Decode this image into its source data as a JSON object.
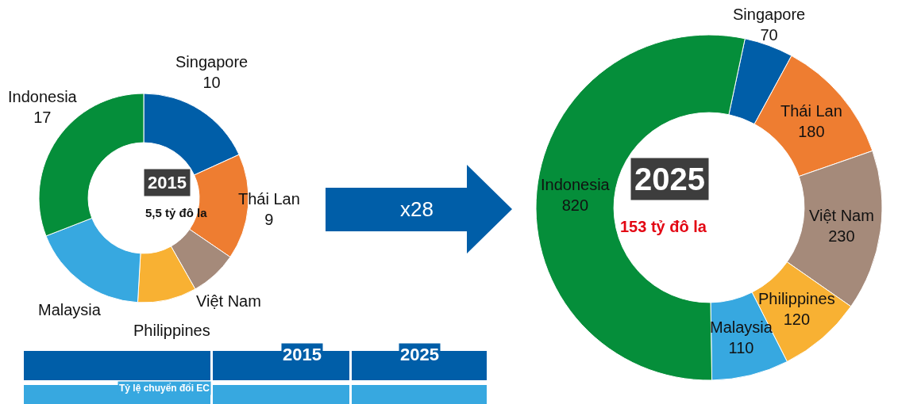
{
  "chart_data": [
    {
      "type": "donut",
      "title": "2015",
      "subtitle": "5,5 tỷ đô la",
      "categories": [
        "Singapore",
        "Thái Lan",
        "Việt Nam",
        "Philippines",
        "Malaysia",
        "Indonesia"
      ],
      "values": [
        10,
        9,
        4,
        5,
        10,
        17
      ],
      "value_labels": [
        "10",
        "9",
        null,
        null,
        null,
        "17"
      ],
      "colors": [
        "#005ea8",
        "#ee7d31",
        "#a58a7a",
        "#f8b133",
        "#37a8e0",
        "#058e3a"
      ]
    },
    {
      "type": "donut",
      "title": "2025",
      "subtitle": "153 tỷ đô la",
      "annotations": [
        "x28"
      ],
      "categories": [
        "Singapore",
        "Thái Lan",
        "Việt Nam",
        "Philippines",
        "Malaysia",
        "Indonesia"
      ],
      "values": [
        70,
        180,
        230,
        120,
        110,
        820
      ],
      "data_labels": true,
      "colors": [
        "#005ea8",
        "#ee7d31",
        "#a58a7a",
        "#f8b133",
        "#37a8e0",
        "#058e3a"
      ]
    },
    {
      "type": "other",
      "categories": [
        "2015",
        "2025"
      ],
      "annotations": [
        "Tỷ lệ chuyển đổi EC"
      ]
    }
  ]
}
